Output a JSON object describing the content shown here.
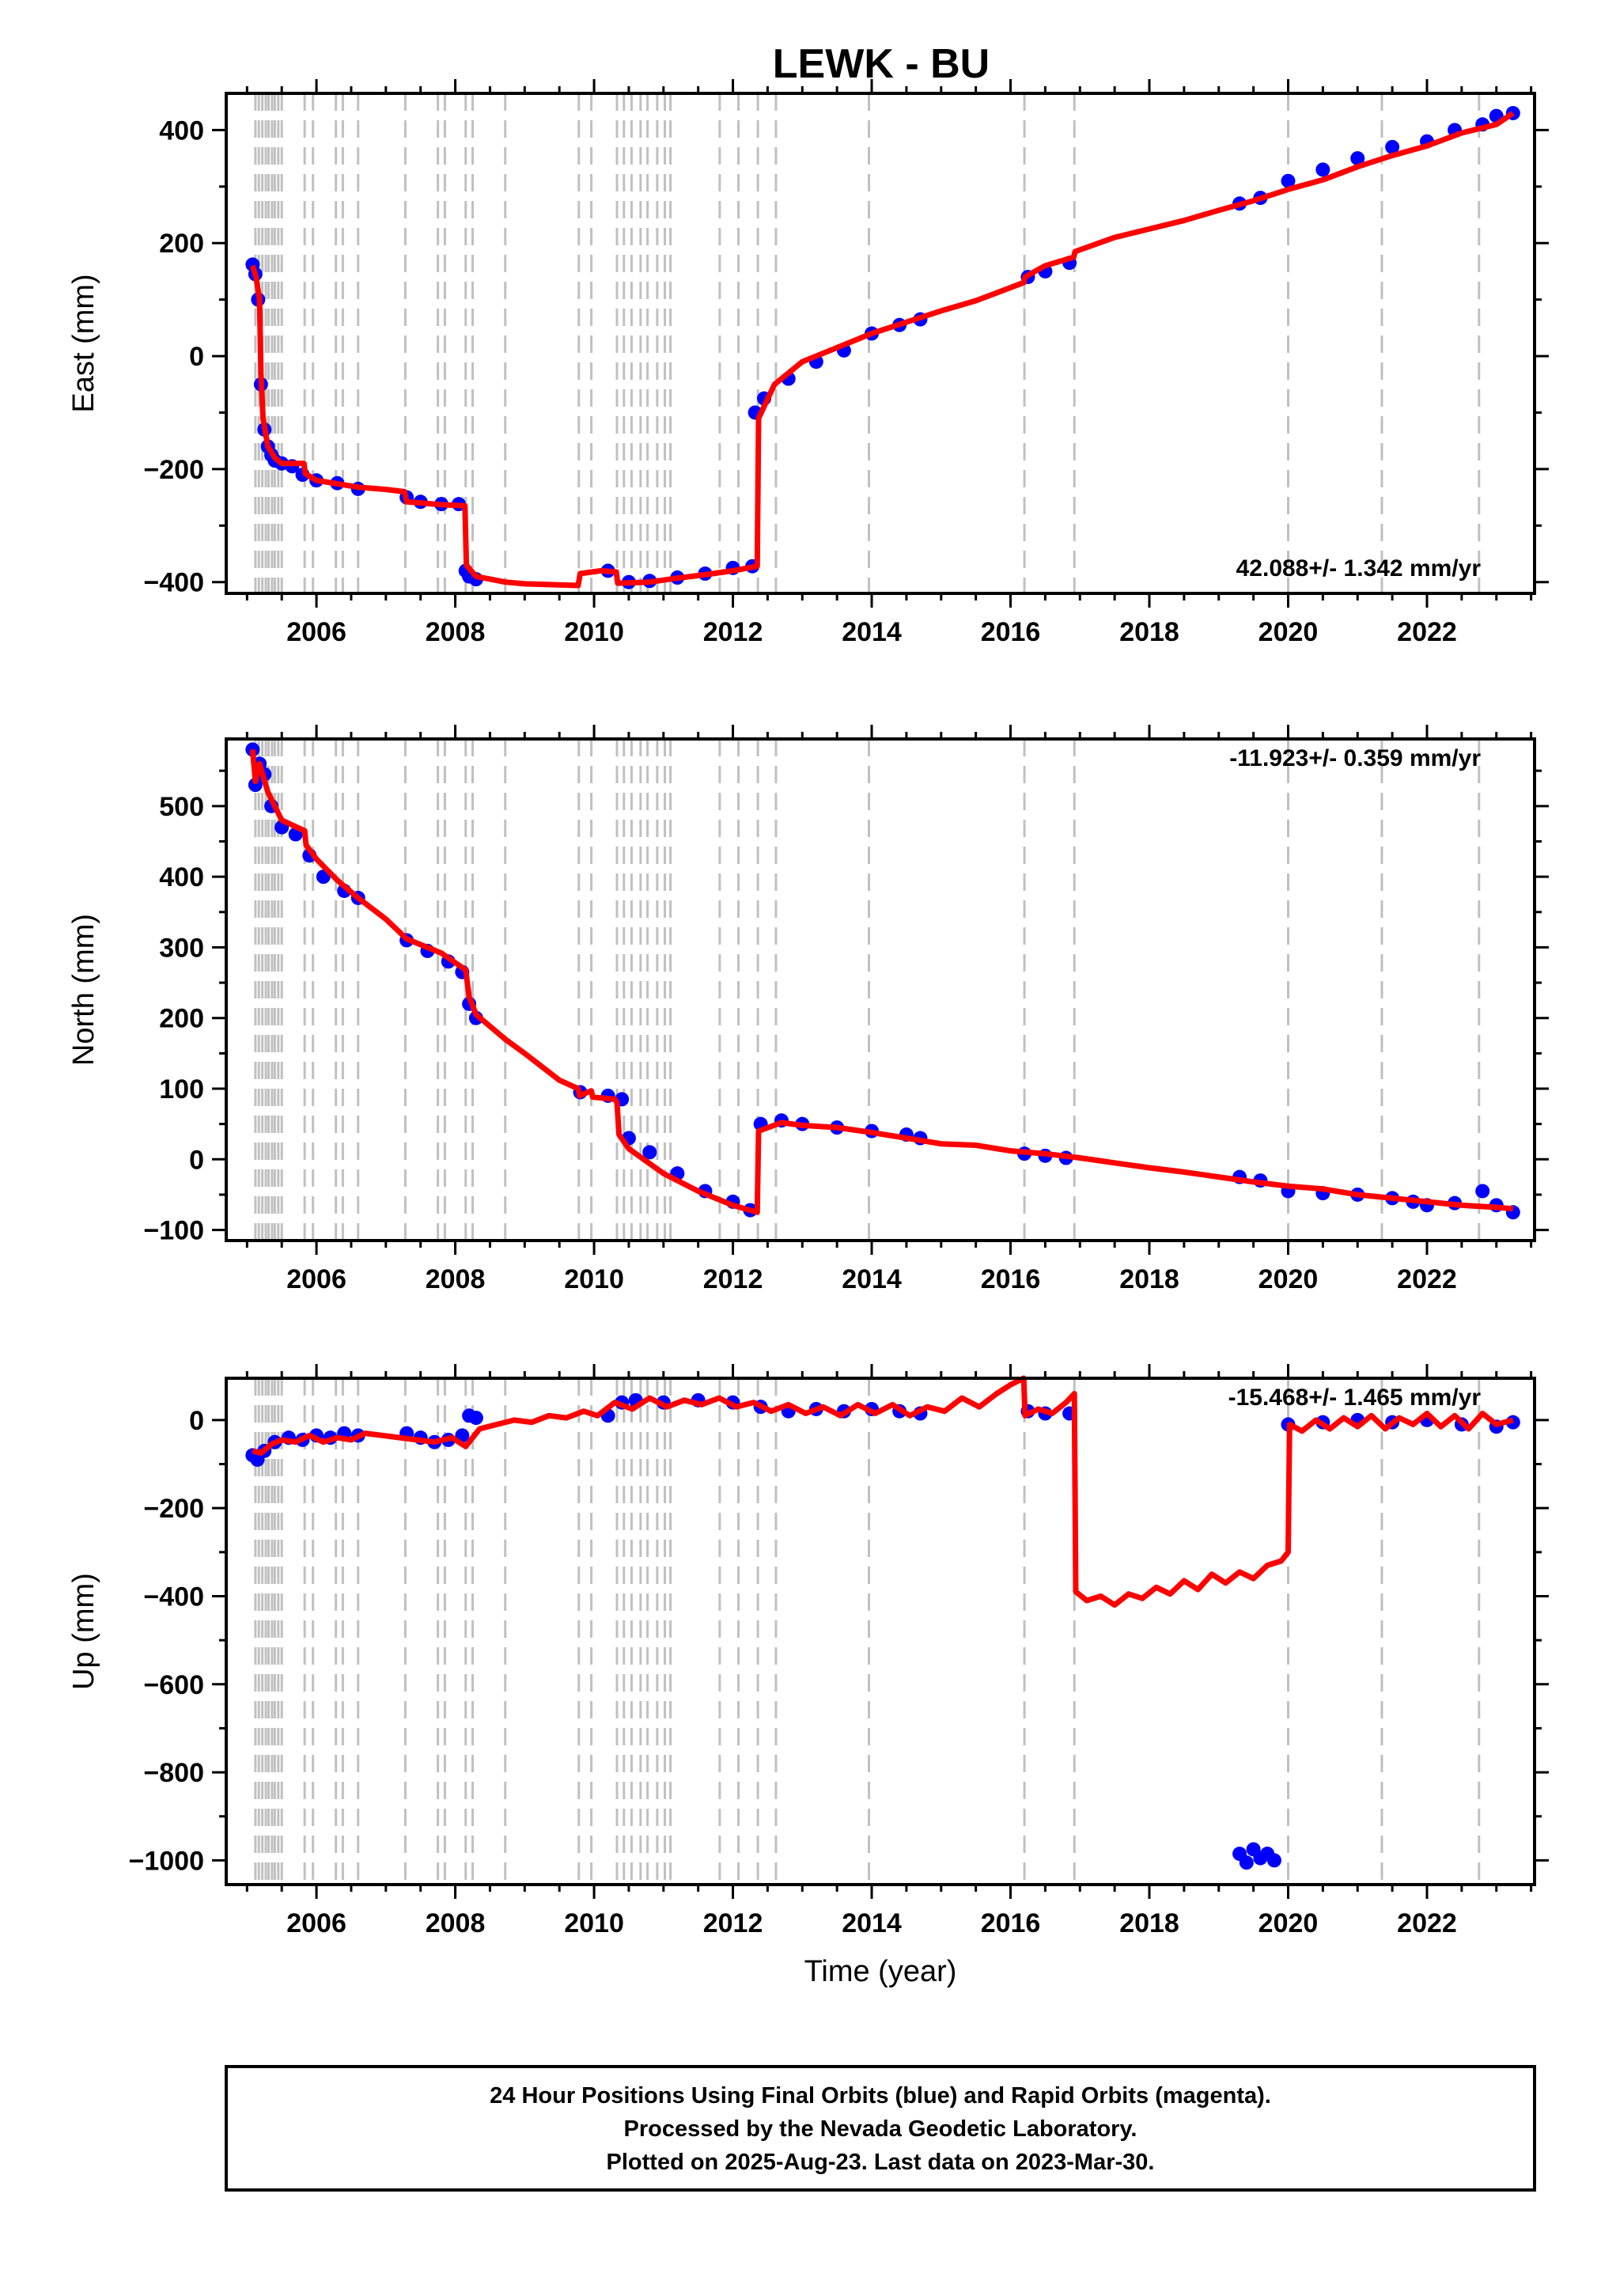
{
  "title": "LEWK - BU",
  "x_axis": {
    "label": "Time (year)",
    "range": [
      2004.7,
      2023.55
    ],
    "ticks": [
      2006,
      2008,
      2010,
      2012,
      2014,
      2016,
      2018,
      2020,
      2022
    ],
    "tick_labels": [
      "2006",
      "2008",
      "2010",
      "2012",
      "2014",
      "2016",
      "2018",
      "2020",
      "2022"
    ]
  },
  "dashed_event_lines": [
    2005.12,
    2005.17,
    2005.22,
    2005.27,
    2005.31,
    2005.36,
    2005.4,
    2005.45,
    2005.5,
    2005.83,
    2005.95,
    2006.28,
    2006.38,
    2006.6,
    2007.28,
    2007.75,
    2007.85,
    2008.15,
    2008.25,
    2008.72,
    2009.78,
    2009.96,
    2010.33,
    2010.43,
    2010.54,
    2010.67,
    2010.77,
    2010.91,
    2011.02,
    2011.1,
    2011.81,
    2012.08,
    2012.36,
    2012.62,
    2013.96,
    2016.2,
    2016.92,
    2020.0,
    2021.35,
    2022.75
  ],
  "colors": {
    "observations": "#0000ff",
    "model": "#ff0000",
    "event_lines": "#c0c0c0",
    "frame": "#000000"
  },
  "chart_data": [
    {
      "type": "scatter",
      "component": "East",
      "ylabel": "East (mm)",
      "ylim": [
        -420,
        465
      ],
      "y_ticks": [
        -400,
        -200,
        0,
        200,
        400
      ],
      "y_tick_labels": [
        "−400",
        "−200",
        "0",
        "200",
        "400"
      ],
      "rate_label": "42.088+/- 1.342 mm/yr",
      "series": [
        {
          "kind": "observations",
          "x": [
            2005.08,
            2005.12,
            2005.16,
            2005.2,
            2005.25,
            2005.3,
            2005.35,
            2005.4,
            2005.5,
            2005.65,
            2005.8,
            2006.0,
            2006.3,
            2006.6,
            2007.3,
            2007.5,
            2007.8,
            2008.05,
            2008.15,
            2008.2,
            2008.3,
            2010.2,
            2010.5,
            2010.8,
            2011.2,
            2011.6,
            2012.0,
            2012.28,
            2012.32,
            2012.45,
            2012.8,
            2013.2,
            2013.6,
            2014.0,
            2014.4,
            2014.7,
            2016.25,
            2016.5,
            2016.85,
            2019.3,
            2019.6,
            2020.0,
            2020.5,
            2021.0,
            2021.5,
            2022.0,
            2022.4,
            2022.8,
            2023.0,
            2023.24
          ],
          "y": [
            162,
            145,
            100,
            -50,
            -130,
            -160,
            -175,
            -185,
            -190,
            -195,
            -210,
            -220,
            -225,
            -235,
            -250,
            -258,
            -262,
            -262,
            -380,
            -390,
            -395,
            -380,
            -400,
            -398,
            -392,
            -385,
            -375,
            -372,
            -100,
            -75,
            -40,
            -10,
            10,
            40,
            55,
            65,
            140,
            150,
            165,
            270,
            280,
            310,
            330,
            350,
            370,
            380,
            400,
            410,
            425,
            430
          ]
        },
        {
          "kind": "model",
          "x": [
            2005.08,
            2005.13,
            2005.18,
            2005.2,
            2005.23,
            2005.3,
            2005.4,
            2005.5,
            2005.7,
            2005.82,
            2005.84,
            2006.0,
            2006.3,
            2006.6,
            2007.0,
            2007.27,
            2007.3,
            2007.8,
            2008.14,
            2008.16,
            2008.3,
            2008.72,
            2009.0,
            2009.77,
            2009.8,
            2010.1,
            2010.32,
            2010.34,
            2010.8,
            2011.2,
            2011.6,
            2012.0,
            2012.35,
            2012.37,
            2012.6,
            2013.0,
            2013.5,
            2014.0,
            2014.5,
            2015.0,
            2015.5,
            2016.19,
            2016.21,
            2016.5,
            2016.91,
            2016.93,
            2017.5,
            2018.0,
            2018.5,
            2019.0,
            2019.5,
            2020.0,
            2020.5,
            2021.0,
            2021.5,
            2022.0,
            2022.5,
            2023.0,
            2023.24
          ],
          "y": [
            160,
            140,
            100,
            -30,
            -110,
            -160,
            -180,
            -190,
            -190,
            -190,
            -208,
            -220,
            -226,
            -232,
            -236,
            -240,
            -258,
            -263,
            -265,
            -370,
            -390,
            -400,
            -403,
            -406,
            -385,
            -380,
            -382,
            -402,
            -400,
            -393,
            -387,
            -380,
            -372,
            -110,
            -50,
            -10,
            15,
            40,
            60,
            80,
            98,
            130,
            140,
            160,
            175,
            185,
            210,
            225,
            240,
            258,
            275,
            295,
            312,
            335,
            355,
            372,
            395,
            410,
            430
          ]
        }
      ]
    },
    {
      "type": "scatter",
      "component": "North",
      "ylabel": "North (mm)",
      "ylim": [
        -115,
        595
      ],
      "y_ticks": [
        -100,
        0,
        100,
        200,
        300,
        400,
        500
      ],
      "y_tick_labels": [
        "−100",
        "0",
        "100",
        "200",
        "300",
        "400",
        "500"
      ],
      "rate_label": "-11.923+/- 0.359 mm/yr",
      "series": [
        {
          "kind": "observations",
          "x": [
            2005.08,
            2005.12,
            2005.18,
            2005.25,
            2005.35,
            2005.5,
            2005.7,
            2005.9,
            2006.1,
            2006.4,
            2006.6,
            2007.3,
            2007.6,
            2007.9,
            2008.1,
            2008.2,
            2008.3,
            2009.8,
            2010.2,
            2010.4,
            2010.5,
            2010.8,
            2011.2,
            2011.6,
            2012.0,
            2012.25,
            2012.4,
            2012.7,
            2013.0,
            2013.5,
            2014.0,
            2014.5,
            2014.7,
            2016.2,
            2016.5,
            2016.8,
            2019.3,
            2019.6,
            2020.0,
            2020.5,
            2021.0,
            2021.5,
            2021.8,
            2022.0,
            2022.4,
            2022.8,
            2023.0,
            2023.24
          ],
          "y": [
            580,
            530,
            560,
            545,
            500,
            470,
            460,
            430,
            400,
            380,
            370,
            310,
            295,
            280,
            265,
            220,
            200,
            95,
            90,
            85,
            30,
            10,
            -20,
            -45,
            -60,
            -72,
            50,
            55,
            50,
            45,
            40,
            35,
            30,
            8,
            5,
            2,
            -25,
            -30,
            -45,
            -48,
            -50,
            -55,
            -60,
            -65,
            -62,
            -45,
            -65,
            -75
          ]
        },
        {
          "kind": "model",
          "x": [
            2005.08,
            2005.12,
            2005.18,
            2005.3,
            2005.5,
            2005.83,
            2005.85,
            2006.0,
            2006.3,
            2006.6,
            2007.0,
            2007.3,
            2007.8,
            2008.15,
            2008.2,
            2008.3,
            2008.72,
            2009.0,
            2009.5,
            2009.77,
            2009.79,
            2009.96,
            2009.98,
            2010.3,
            2010.33,
            2010.36,
            2010.5,
            2011.0,
            2011.5,
            2012.0,
            2012.35,
            2012.37,
            2012.7,
            2013.0,
            2013.5,
            2014.0,
            2014.5,
            2015.0,
            2015.5,
            2016.0,
            2016.5,
            2017.0,
            2017.5,
            2018.0,
            2018.5,
            2019.0,
            2019.5,
            2020.0,
            2020.5,
            2021.0,
            2021.5,
            2022.0,
            2022.5,
            2023.0,
            2023.24
          ],
          "y": [
            580,
            535,
            560,
            520,
            480,
            465,
            445,
            425,
            395,
            370,
            340,
            312,
            292,
            268,
            230,
            205,
            170,
            150,
            112,
            100,
            90,
            97,
            88,
            85,
            80,
            35,
            15,
            -20,
            -45,
            -65,
            -75,
            40,
            52,
            48,
            45,
            38,
            30,
            22,
            20,
            12,
            8,
            2,
            -5,
            -12,
            -18,
            -25,
            -32,
            -38,
            -42,
            -50,
            -55,
            -60,
            -65,
            -68,
            -70
          ]
        }
      ]
    },
    {
      "type": "scatter",
      "component": "Up",
      "ylabel": "Up (mm)",
      "ylim": [
        -1055,
        95
      ],
      "y_ticks": [
        -1000,
        -800,
        -600,
        -400,
        -200,
        0
      ],
      "y_tick_labels": [
        "−1000",
        "−800",
        "−600",
        "−400",
        "−200",
        "0"
      ],
      "rate_label": "-15.468+/- 1.465 mm/yr",
      "series": [
        {
          "kind": "observations",
          "x": [
            2005.08,
            2005.15,
            2005.25,
            2005.4,
            2005.6,
            2005.8,
            2006.0,
            2006.2,
            2006.4,
            2006.6,
            2007.3,
            2007.5,
            2007.7,
            2007.9,
            2008.1,
            2008.2,
            2008.3,
            2010.2,
            2010.4,
            2010.6,
            2011.0,
            2011.5,
            2012.0,
            2012.4,
            2012.8,
            2013.2,
            2013.6,
            2014.0,
            2014.4,
            2014.7,
            2016.25,
            2016.5,
            2016.85,
            2019.3,
            2019.4,
            2019.5,
            2019.6,
            2019.7,
            2019.8,
            2020.0,
            2020.5,
            2021.0,
            2021.5,
            2022.0,
            2022.5,
            2023.0,
            2023.24
          ],
          "y": [
            -80,
            -90,
            -70,
            -50,
            -40,
            -45,
            -35,
            -40,
            -30,
            -35,
            -30,
            -40,
            -50,
            -45,
            -35,
            10,
            5,
            10,
            40,
            45,
            40,
            45,
            40,
            30,
            20,
            25,
            20,
            25,
            20,
            15,
            20,
            15,
            15,
            -985,
            -1005,
            -975,
            -995,
            -985,
            -1000,
            -10,
            -5,
            0,
            -5,
            0,
            -10,
            -15,
            -5
          ]
        },
        {
          "kind": "model",
          "x": [
            2005.08,
            2005.2,
            2005.35,
            2005.5,
            2005.7,
            2005.9,
            2006.1,
            2006.3,
            2006.5,
            2006.7,
            2006.95,
            2007.2,
            2007.45,
            2007.7,
            2007.95,
            2008.15,
            2008.35,
            2008.6,
            2008.85,
            2009.1,
            2009.35,
            2009.6,
            2009.85,
            2010.05,
            2010.3,
            2010.55,
            2010.8,
            2011.05,
            2011.3,
            2011.55,
            2011.8,
            2012.05,
            2012.3,
            2012.55,
            2012.8,
            2013.05,
            2013.3,
            2013.55,
            2013.8,
            2014.05,
            2014.3,
            2014.55,
            2014.8,
            2015.05,
            2015.3,
            2015.55,
            2015.8,
            2016.0,
            2016.19,
            2016.21,
            2016.4,
            2016.6,
            2016.8,
            2016.92,
            2016.94,
            2017.1,
            2017.3,
            2017.5,
            2017.7,
            2017.9,
            2018.1,
            2018.3,
            2018.5,
            2018.7,
            2018.9,
            2019.1,
            2019.3,
            2019.5,
            2019.7,
            2019.9,
            2020.0,
            2020.02,
            2020.2,
            2020.4,
            2020.6,
            2020.8,
            2021.0,
            2021.2,
            2021.4,
            2021.6,
            2021.8,
            2022.0,
            2022.2,
            2022.4,
            2022.6,
            2022.8,
            2023.0,
            2023.24
          ],
          "y": [
            -70,
            -75,
            -55,
            -45,
            -50,
            -35,
            -50,
            -40,
            -45,
            -30,
            -35,
            -40,
            -45,
            -50,
            -40,
            -60,
            -20,
            -10,
            0,
            -5,
            10,
            5,
            20,
            10,
            40,
            25,
            50,
            30,
            45,
            35,
            50,
            30,
            40,
            20,
            35,
            15,
            30,
            10,
            35,
            15,
            35,
            10,
            30,
            20,
            50,
            30,
            60,
            80,
            95,
            10,
            25,
            15,
            40,
            60,
            -390,
            -410,
            -400,
            -420,
            -395,
            -405,
            -380,
            -395,
            -365,
            -385,
            -350,
            -370,
            -345,
            -360,
            -330,
            -320,
            -300,
            -10,
            -25,
            0,
            -20,
            5,
            -15,
            10,
            -20,
            5,
            -10,
            15,
            -15,
            10,
            -20,
            15,
            -10,
            0
          ]
        }
      ]
    }
  ],
  "footer": {
    "lines": [
      "24 Hour Positions Using Final Orbits (blue) and Rapid Orbits (magenta).",
      "Processed by the Nevada Geodetic Laboratory.",
      "Plotted on 2025-Aug-23. Last data on 2023-Mar-30."
    ]
  }
}
